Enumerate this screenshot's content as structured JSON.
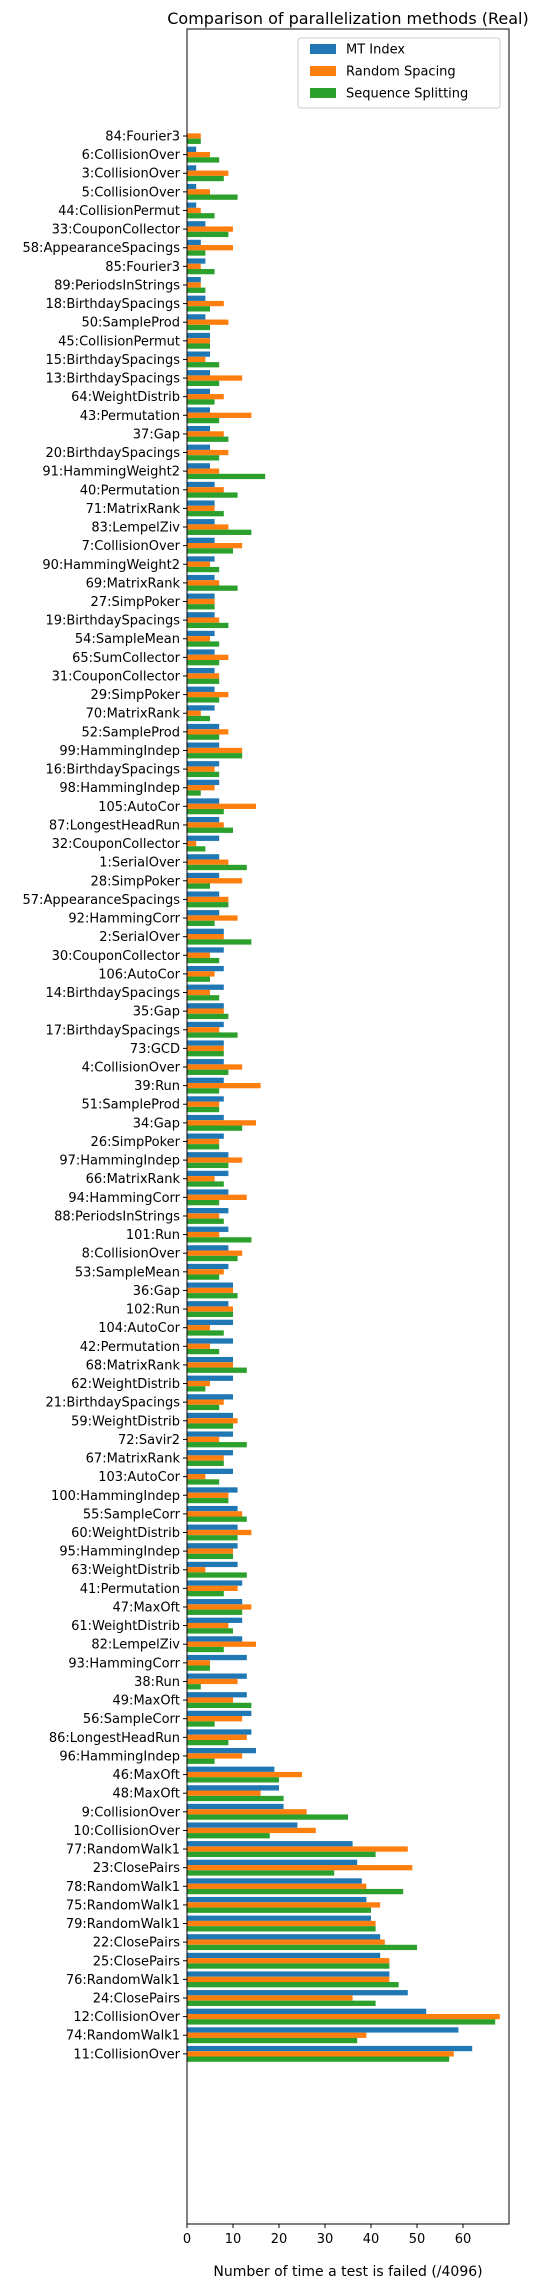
{
  "chart_data": {
    "type": "bar",
    "orientation": "horizontal",
    "title": "Comparison of parallelization methods (Real)",
    "xlabel": "Number of time a test is failed (/4096)",
    "ylabel": "",
    "xlim": [
      0,
      70
    ],
    "xticks": [
      0,
      10,
      20,
      30,
      40,
      50,
      60
    ],
    "grid": false,
    "legend_position": "top-right",
    "categories": [
      "84:Fourier3",
      "6:CollisionOver",
      "3:CollisionOver",
      "5:CollisionOver",
      "44:CollisionPermut",
      "33:CouponCollector",
      "58:AppearanceSpacings",
      "85:Fourier3",
      "89:PeriodsInStrings",
      "18:BirthdaySpacings",
      "50:SampleProd",
      "45:CollisionPermut",
      "15:BirthdaySpacings",
      "13:BirthdaySpacings",
      "64:WeightDistrib",
      "43:Permutation",
      "37:Gap",
      "20:BirthdaySpacings",
      "91:HammingWeight2",
      "40:Permutation",
      "71:MatrixRank",
      "83:LempelZiv",
      "7:CollisionOver",
      "90:HammingWeight2",
      "69:MatrixRank",
      "27:SimpPoker",
      "19:BirthdaySpacings",
      "54:SampleMean",
      "65:SumCollector",
      "31:CouponCollector",
      "29:SimpPoker",
      "70:MatrixRank",
      "52:SampleProd",
      "99:HammingIndep",
      "16:BirthdaySpacings",
      "98:HammingIndep",
      "105:AutoCor",
      "87:LongestHeadRun",
      "32:CouponCollector",
      "1:SerialOver",
      "28:SimpPoker",
      "57:AppearanceSpacings",
      "92:HammingCorr",
      "2:SerialOver",
      "30:CouponCollector",
      "106:AutoCor",
      "14:BirthdaySpacings",
      "35:Gap",
      "17:BirthdaySpacings",
      "73:GCD",
      "4:CollisionOver",
      "39:Run",
      "51:SampleProd",
      "34:Gap",
      "26:SimpPoker",
      "97:HammingIndep",
      "66:MatrixRank",
      "94:HammingCorr",
      "88:PeriodsInStrings",
      "101:Run",
      "8:CollisionOver",
      "53:SampleMean",
      "36:Gap",
      "102:Run",
      "104:AutoCor",
      "42:Permutation",
      "68:MatrixRank",
      "62:WeightDistrib",
      "21:BirthdaySpacings",
      "59:WeightDistrib",
      "72:Savir2",
      "67:MatrixRank",
      "103:AutoCor",
      "100:HammingIndep",
      "55:SampleCorr",
      "60:WeightDistrib",
      "95:HammingIndep",
      "63:WeightDistrib",
      "41:Permutation",
      "47:MaxOft",
      "61:WeightDistrib",
      "82:LempelZiv",
      "93:HammingCorr",
      "38:Run",
      "49:MaxOft",
      "56:SampleCorr",
      "86:LongestHeadRun",
      "96:HammingIndep",
      "46:MaxOft",
      "48:MaxOft",
      "9:CollisionOver",
      "10:CollisionOver",
      "77:RandomWalk1",
      "23:ClosePairs",
      "78:RandomWalk1",
      "75:RandomWalk1",
      "79:RandomWalk1",
      "22:ClosePairs",
      "25:ClosePairs",
      "76:RandomWalk1",
      "24:ClosePairs",
      "12:CollisionOver",
      "74:RandomWalk1",
      "11:CollisionOver"
    ],
    "series": [
      {
        "name": "MT Index",
        "color": "#1f77b4",
        "values": [
          0,
          2,
          2,
          2,
          2,
          4,
          3,
          4,
          3,
          4,
          4,
          5,
          5,
          5,
          5,
          5,
          5,
          5,
          5,
          6,
          6,
          6,
          6,
          6,
          6,
          6,
          6,
          6,
          6,
          6,
          6,
          6,
          7,
          7,
          7,
          7,
          7,
          7,
          7,
          7,
          7,
          7,
          7,
          8,
          8,
          8,
          8,
          8,
          8,
          8,
          8,
          8,
          8,
          8,
          8,
          9,
          9,
          9,
          9,
          9,
          9,
          9,
          10,
          9,
          10,
          10,
          10,
          10,
          10,
          10,
          10,
          10,
          10,
          11,
          11,
          11,
          11,
          11,
          12,
          12,
          12,
          12,
          13,
          13,
          13,
          14,
          14,
          15,
          19,
          20,
          21,
          24,
          36,
          37,
          38,
          39,
          40,
          42,
          42,
          44,
          48,
          52,
          59,
          62
        ]
      },
      {
        "name": "Random Spacing",
        "color": "#ff7f0e",
        "values": [
          3,
          5,
          9,
          5,
          3,
          10,
          10,
          3,
          3,
          8,
          9,
          5,
          4,
          12,
          8,
          14,
          8,
          9,
          7,
          8,
          6,
          9,
          12,
          5,
          7,
          6,
          7,
          5,
          9,
          7,
          9,
          3,
          9,
          12,
          6,
          6,
          15,
          8,
          2,
          9,
          12,
          9,
          11,
          8,
          5,
          6,
          5,
          8,
          7,
          8,
          12,
          16,
          7,
          15,
          7,
          12,
          6,
          13,
          7,
          7,
          12,
          8,
          10,
          10,
          5,
          5,
          10,
          5,
          8,
          11,
          7,
          8,
          4,
          9,
          12,
          14,
          10,
          4,
          11,
          14,
          9,
          15,
          5,
          11,
          10,
          12,
          13,
          12,
          25,
          16,
          26,
          28,
          48,
          49,
          39,
          42,
          41,
          43,
          44,
          44,
          36,
          68,
          39,
          58
        ]
      },
      {
        "name": "Sequence Splitting",
        "color": "#2ca02c",
        "values": [
          3,
          7,
          8,
          11,
          6,
          9,
          4,
          6,
          4,
          5,
          5,
          5,
          7,
          7,
          6,
          7,
          9,
          7,
          17,
          11,
          8,
          14,
          10,
          7,
          11,
          6,
          9,
          7,
          7,
          7,
          7,
          5,
          7,
          12,
          7,
          3,
          8,
          10,
          4,
          13,
          5,
          9,
          6,
          14,
          7,
          5,
          7,
          9,
          11,
          8,
          9,
          7,
          7,
          12,
          7,
          9,
          8,
          7,
          8,
          14,
          11,
          7,
          11,
          10,
          8,
          7,
          13,
          4,
          7,
          10,
          13,
          8,
          7,
          9,
          13,
          11,
          10,
          13,
          8,
          12,
          10,
          8,
          5,
          3,
          14,
          6,
          9,
          6,
          20,
          21,
          35,
          18,
          41,
          32,
          47,
          40,
          41,
          50,
          44,
          46,
          41,
          67,
          37,
          57
        ]
      }
    ]
  }
}
